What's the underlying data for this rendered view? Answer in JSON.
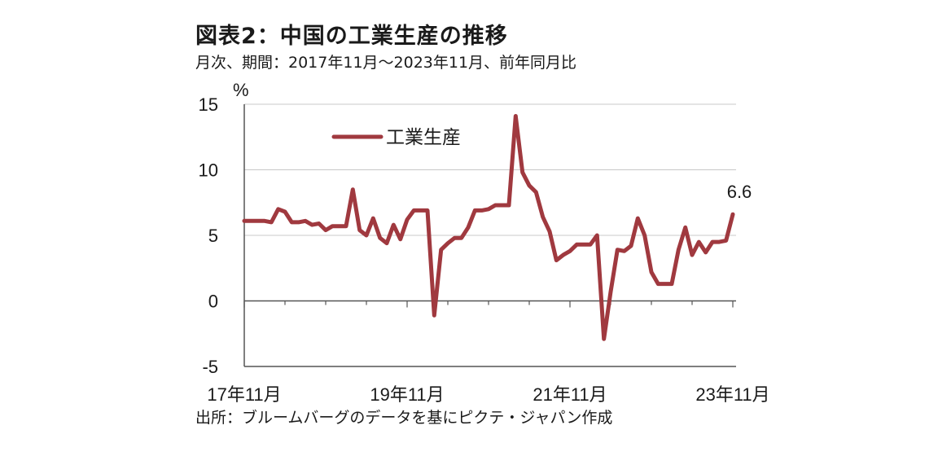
{
  "title": "図表2：中国の工業生産の推移",
  "subtitle": "月次、期間：2017年11月～2023年11月、前年同月比",
  "source": "出所：ブルームバーグのデータを基にピクテ・ジャパン作成",
  "colors": {
    "series": "#a0393f",
    "grid": "#c8c8c8",
    "axis": "#555555"
  },
  "chart_data": {
    "type": "line",
    "unit_label": "%",
    "ylim": [
      -5,
      15
    ],
    "yticks": [
      "15",
      "10",
      "5",
      "0",
      "-5"
    ],
    "ytick_values": [
      15,
      10,
      5,
      0,
      -5
    ],
    "xtick_labels": [
      "17年11月",
      "19年11月",
      "21年11月",
      "23年11月"
    ],
    "xtick_index": [
      0,
      24,
      48,
      72
    ],
    "grid": true,
    "legend_position": "top-left",
    "last_value_label": "6.6",
    "series": [
      {
        "name": "工業生産",
        "x_start": "2017-11",
        "x_end": "2023-11",
        "values": [
          6.1,
          6.1,
          6.1,
          6.1,
          6.0,
          7.0,
          6.8,
          6.0,
          6.0,
          6.1,
          5.8,
          5.9,
          5.4,
          5.7,
          5.7,
          5.7,
          8.5,
          5.4,
          5.0,
          6.3,
          4.8,
          4.4,
          5.8,
          4.7,
          6.2,
          6.9,
          6.9,
          6.9,
          -1.1,
          3.9,
          4.4,
          4.8,
          4.8,
          5.6,
          6.9,
          6.9,
          7.0,
          7.3,
          7.3,
          7.3,
          14.1,
          9.8,
          8.8,
          8.3,
          6.4,
          5.3,
          3.1,
          3.5,
          3.8,
          4.3,
          4.3,
          4.3,
          5.0,
          -2.9,
          0.7,
          3.9,
          3.8,
          4.2,
          6.3,
          5.0,
          2.2,
          1.3,
          1.3,
          1.3,
          3.9,
          5.6,
          3.5,
          4.5,
          3.7,
          4.5,
          4.5,
          4.6,
          6.6
        ]
      }
    ]
  }
}
